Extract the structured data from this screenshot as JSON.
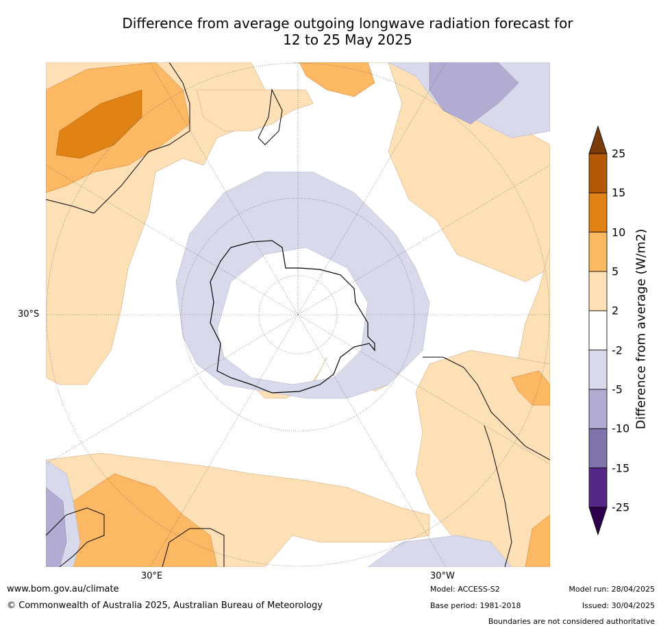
{
  "title": {
    "line1": "Difference from average outgoing longwave radiation forecast for",
    "line2": "12 to 25 May 2025"
  },
  "map": {
    "projection": "south polar stereographic",
    "labels": {
      "lat": "30°S",
      "lon_east": "30°E",
      "lon_west": "30°W"
    }
  },
  "colorbar": {
    "label": "Difference from average (W/m2)",
    "ticks": [
      "25",
      "15",
      "10",
      "5",
      "2",
      "-2",
      "-5",
      "-10",
      "-15",
      "-25"
    ],
    "colors": [
      "#7a3b0c",
      "#b35806",
      "#e08214",
      "#fdb863",
      "#fee0b6",
      "#ffffff",
      "#d8daeb",
      "#b2abd2",
      "#8073ac",
      "#542788",
      "#2d004b"
    ]
  },
  "footer": {
    "url": "www.bom.gov.au/climate",
    "copyright": "© Commonwealth of Australia 2025, Australian Bureau of Meteorology",
    "model": "Model: ACCESS-S2",
    "base_period": "Base period: 1981-2018",
    "model_run": "Model run: 28/04/2025",
    "issued": "Issued: 30/04/2025",
    "disclaimer": "Boundaries are not considered authoritative"
  }
}
